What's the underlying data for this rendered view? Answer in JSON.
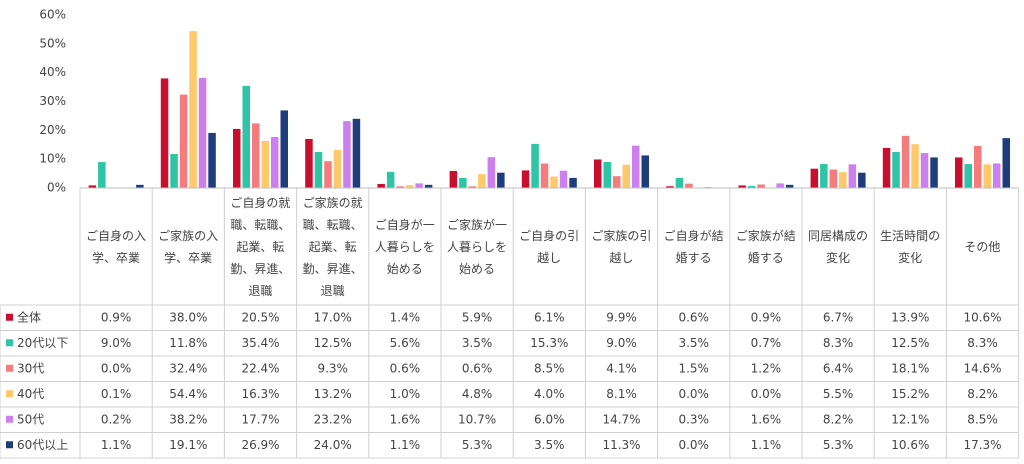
{
  "chart_data": {
    "type": "bar",
    "categories": [
      "ご自身の入学、卒業",
      "ご家族の入学、卒業",
      "ご自身の就職、転職、起業、転勤、昇進、退職",
      "ご家族の就職、転職、起業、転勤、昇進、退職",
      "ご自身が一人暮らしを始める",
      "ご家族が一人暮らしを始める",
      "ご自身の引越し",
      "ご家族の引越し",
      "ご自身が結婚する",
      "ご家族が結婚する",
      "同居構成の変化",
      "生活時間の変化",
      "その他"
    ],
    "series": [
      {
        "name": "全体",
        "color": "#c8102e",
        "values": [
          0.9,
          38.0,
          20.5,
          17.0,
          1.4,
          5.9,
          6.1,
          9.9,
          0.6,
          0.9,
          6.7,
          13.9,
          10.6
        ],
        "value_labels": [
          "0.9%",
          "38.0%",
          "20.5%",
          "17.0%",
          "1.4%",
          "5.9%",
          "6.1%",
          "9.9%",
          "0.6%",
          "0.9%",
          "6.7%",
          "13.9%",
          "10.6%"
        ]
      },
      {
        "name": "20代以下",
        "color": "#2ec4a6",
        "values": [
          9.0,
          11.8,
          35.4,
          12.5,
          5.6,
          3.5,
          15.3,
          9.0,
          3.5,
          0.7,
          8.3,
          12.5,
          8.3
        ],
        "value_labels": [
          "9.0%",
          "11.8%",
          "35.4%",
          "12.5%",
          "5.6%",
          "3.5%",
          "15.3%",
          "9.0%",
          "3.5%",
          "0.7%",
          "8.3%",
          "12.5%",
          "8.3%"
        ]
      },
      {
        "name": "30代",
        "color": "#f47c7c",
        "values": [
          0.0,
          32.4,
          22.4,
          9.3,
          0.6,
          0.6,
          8.5,
          4.1,
          1.5,
          1.2,
          6.4,
          18.1,
          14.6
        ],
        "value_labels": [
          "0.0%",
          "32.4%",
          "22.4%",
          "9.3%",
          "0.6%",
          "0.6%",
          "8.5%",
          "4.1%",
          "1.5%",
          "1.2%",
          "6.4%",
          "18.1%",
          "14.6%"
        ]
      },
      {
        "name": "40代",
        "color": "#fdc96b",
        "values": [
          0.1,
          54.4,
          16.3,
          13.2,
          1.0,
          4.8,
          4.0,
          8.1,
          0.0,
          0.0,
          5.5,
          15.2,
          8.2
        ],
        "value_labels": [
          "0.1%",
          "54.4%",
          "16.3%",
          "13.2%",
          "1.0%",
          "4.8%",
          "4.0%",
          "8.1%",
          "0.0%",
          "0.0%",
          "5.5%",
          "15.2%",
          "8.2%"
        ]
      },
      {
        "name": "50代",
        "color": "#cc80f0",
        "values": [
          0.2,
          38.2,
          17.7,
          23.2,
          1.6,
          10.7,
          6.0,
          14.7,
          0.3,
          1.6,
          8.2,
          12.1,
          8.5
        ],
        "value_labels": [
          "0.2%",
          "38.2%",
          "17.7%",
          "23.2%",
          "1.6%",
          "10.7%",
          "6.0%",
          "14.7%",
          "0.3%",
          "1.6%",
          "8.2%",
          "12.1%",
          "8.5%"
        ]
      },
      {
        "name": "60代以上",
        "color": "#1f3d7a",
        "values": [
          1.1,
          19.1,
          26.9,
          24.0,
          1.1,
          5.3,
          3.5,
          11.3,
          0.0,
          1.1,
          5.3,
          10.6,
          17.3
        ],
        "value_labels": [
          "1.1%",
          "19.1%",
          "26.9%",
          "24.0%",
          "1.1%",
          "5.3%",
          "3.5%",
          "11.3%",
          "0.0%",
          "1.1%",
          "5.3%",
          "10.6%",
          "17.3%"
        ]
      }
    ],
    "ylim": [
      0,
      60
    ],
    "yticks": [
      {
        "value": 0,
        "label": "0%"
      },
      {
        "value": 10,
        "label": "10%"
      },
      {
        "value": 20,
        "label": "20%"
      },
      {
        "value": 30,
        "label": "30%"
      },
      {
        "value": 40,
        "label": "40%"
      },
      {
        "value": 50,
        "label": "50%"
      },
      {
        "value": 60,
        "label": "60%"
      }
    ]
  }
}
